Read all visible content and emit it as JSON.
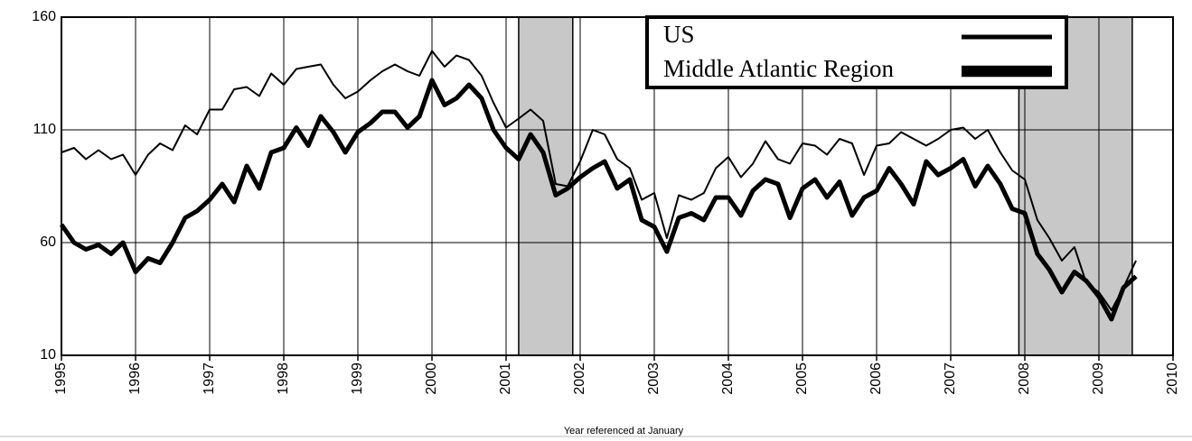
{
  "chart_data": {
    "type": "line",
    "xlabel": "Year referenced at January",
    "x": [
      1995,
      1995.17,
      1995.33,
      1995.5,
      1995.67,
      1995.83,
      1996,
      1996.17,
      1996.33,
      1996.5,
      1996.67,
      1996.83,
      1997,
      1997.17,
      1997.33,
      1997.5,
      1997.67,
      1997.83,
      1998,
      1998.17,
      1998.33,
      1998.5,
      1998.67,
      1998.83,
      1999,
      1999.17,
      1999.33,
      1999.5,
      1999.67,
      1999.83,
      2000,
      2000.17,
      2000.33,
      2000.5,
      2000.67,
      2000.83,
      2001,
      2001.17,
      2001.33,
      2001.5,
      2001.67,
      2001.83,
      2002,
      2002.17,
      2002.33,
      2002.5,
      2002.67,
      2002.83,
      2003,
      2003.17,
      2003.33,
      2003.5,
      2003.67,
      2003.83,
      2004,
      2004.17,
      2004.33,
      2004.5,
      2004.67,
      2004.83,
      2005,
      2005.17,
      2005.33,
      2005.5,
      2005.67,
      2005.83,
      2006,
      2006.17,
      2006.33,
      2006.5,
      2006.67,
      2006.83,
      2007,
      2007.17,
      2007.33,
      2007.5,
      2007.67,
      2007.83,
      2008,
      2008.17,
      2008.33,
      2008.5,
      2008.67,
      2008.83,
      2009,
      2009.17,
      2009.33,
      2009.5
    ],
    "series": [
      {
        "name": "US",
        "color": "#000000",
        "width": 2,
        "values": [
          100,
          102,
          97,
          101,
          97,
          99,
          90,
          99,
          104,
          101,
          112,
          108,
          119,
          119,
          128,
          129,
          125,
          135,
          130,
          137,
          138,
          139,
          130,
          124,
          127,
          132,
          136,
          139,
          136,
          134,
          145,
          138,
          143,
          141,
          134,
          122,
          111,
          115,
          119,
          114,
          86,
          85,
          96,
          110,
          108,
          97,
          93,
          79,
          82,
          62,
          81,
          79,
          82,
          93,
          98,
          89,
          95,
          105,
          97,
          95,
          104,
          103,
          99,
          106,
          104,
          90,
          103,
          104,
          109,
          106,
          103,
          106,
          110,
          111,
          106,
          110,
          100,
          92,
          88,
          70,
          62,
          52,
          58,
          42,
          38,
          30,
          40,
          52
        ]
      },
      {
        "name": "Middle Atlantic Region",
        "color": "#000000",
        "width": 5,
        "values": [
          68,
          60,
          57,
          59,
          55,
          60,
          47,
          53,
          51,
          60,
          71,
          74,
          79,
          86,
          78,
          94,
          84,
          100,
          102,
          111,
          103,
          116,
          109,
          100,
          109,
          113,
          118,
          118,
          111,
          116,
          132,
          121,
          124,
          130,
          124,
          110,
          102,
          97,
          108,
          100,
          81,
          84,
          89,
          93,
          96,
          84,
          88,
          70,
          67,
          56,
          71,
          73,
          70,
          80,
          80,
          72,
          83,
          88,
          86,
          71,
          84,
          88,
          80,
          87,
          72,
          80,
          83,
          93,
          86,
          77,
          96,
          90,
          93,
          97,
          85,
          94,
          86,
          75,
          73,
          55,
          48,
          38,
          47,
          43,
          36,
          26,
          40,
          45
        ]
      }
    ],
    "shaded_periods": [
      [
        2001.17,
        2001.9
      ],
      [
        2007.92,
        2009.45
      ]
    ],
    "shade_color": "#c8c8c8",
    "xlim": [
      1995,
      2010
    ],
    "xticks": [
      1995,
      1996,
      1997,
      1998,
      1999,
      2000,
      2001,
      2002,
      2003,
      2004,
      2005,
      2006,
      2007,
      2008,
      2009,
      2010
    ],
    "ylim": [
      10,
      160
    ],
    "yticks": [
      10,
      60,
      110,
      160
    ],
    "grid": true,
    "legend": "upper right"
  }
}
